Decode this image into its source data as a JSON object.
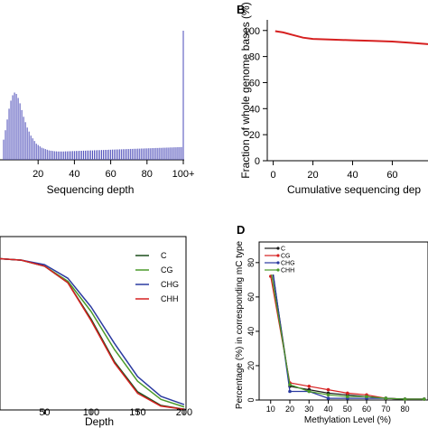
{
  "chart_data": [
    {
      "id": "A",
      "type": "bar",
      "panel_label": "",
      "xlabel": "Sequencing depth",
      "ylabel": "",
      "x_ticks": [
        "20",
        "40",
        "60",
        "80",
        "100+"
      ],
      "x_tick_values": [
        20,
        40,
        60,
        80,
        100
      ],
      "xlim": [
        0,
        100
      ],
      "ylim": [
        0,
        1.0
      ],
      "bar_color": "#4a4ab8",
      "grid": false,
      "depth": [
        1,
        2,
        3,
        4,
        5,
        6,
        7,
        8,
        9,
        10,
        11,
        12,
        13,
        14,
        15,
        16,
        17,
        18,
        19,
        20,
        21,
        22,
        23,
        24,
        25,
        26,
        27,
        28,
        29,
        30,
        31,
        32,
        33,
        34,
        35,
        36,
        37,
        38,
        39,
        40,
        41,
        42,
        43,
        44,
        45,
        46,
        47,
        48,
        49,
        50,
        51,
        52,
        53,
        54,
        55,
        56,
        57,
        58,
        59,
        60,
        61,
        62,
        63,
        64,
        65,
        66,
        67,
        68,
        69,
        70,
        71,
        72,
        73,
        74,
        75,
        76,
        77,
        78,
        79,
        80,
        81,
        82,
        83,
        84,
        85,
        86,
        87,
        88,
        89,
        90,
        91,
        92,
        93,
        94,
        95,
        96,
        97,
        98,
        99,
        100
      ],
      "fraction": [
        0.15,
        0.22,
        0.3,
        0.38,
        0.44,
        0.48,
        0.5,
        0.49,
        0.46,
        0.42,
        0.37,
        0.32,
        0.28,
        0.24,
        0.21,
        0.18,
        0.16,
        0.14,
        0.12,
        0.11,
        0.1,
        0.09,
        0.085,
        0.08,
        0.075,
        0.07,
        0.068,
        0.066,
        0.064,
        0.063,
        0.062,
        0.062,
        0.062,
        0.062,
        0.063,
        0.063,
        0.064,
        0.064,
        0.065,
        0.065,
        0.066,
        0.066,
        0.067,
        0.067,
        0.068,
        0.068,
        0.069,
        0.069,
        0.07,
        0.07,
        0.071,
        0.071,
        0.072,
        0.072,
        0.073,
        0.073,
        0.074,
        0.074,
        0.075,
        0.075,
        0.076,
        0.076,
        0.077,
        0.077,
        0.078,
        0.078,
        0.079,
        0.079,
        0.08,
        0.08,
        0.081,
        0.081,
        0.082,
        0.082,
        0.083,
        0.083,
        0.084,
        0.084,
        0.085,
        0.085,
        0.086,
        0.086,
        0.087,
        0.087,
        0.088,
        0.088,
        0.089,
        0.089,
        0.09,
        0.09,
        0.091,
        0.091,
        0.092,
        0.092,
        0.093,
        0.093,
        0.094,
        0.094,
        0.095,
        0.96
      ]
    },
    {
      "id": "B",
      "type": "line",
      "panel_label": "B",
      "xlabel": "Cumulative sequencing dep",
      "ylabel": "Fraction of whole genome bases (%)",
      "x_ticks": [
        "0",
        "20",
        "40",
        "60"
      ],
      "x_tick_values": [
        0,
        20,
        40,
        60
      ],
      "y_ticks": [
        "0",
        "20",
        "40",
        "60",
        "80",
        "100"
      ],
      "y_tick_values": [
        0,
        20,
        40,
        60,
        80,
        100
      ],
      "xlim": [
        -3,
        78
      ],
      "ylim": [
        0,
        104
      ],
      "grid": false,
      "series": [
        {
          "color": "#d62020",
          "x": [
            1,
            5,
            10,
            15,
            20,
            30,
            40,
            50,
            60,
            70,
            78
          ],
          "y": [
            99.5,
            98.5,
            96.5,
            94.5,
            93.5,
            93.0,
            92.5,
            92.0,
            91.5,
            90.5,
            89.5
          ]
        }
      ]
    },
    {
      "id": "C",
      "type": "line",
      "panel_label": "",
      "xlabel": "Depth",
      "ylabel": "",
      "x_ticks": [
        "50",
        "100",
        "150",
        "200"
      ],
      "x_tick_values": [
        50,
        100,
        150,
        200
      ],
      "xlim": [
        2,
        202
      ],
      "ylim": [
        0,
        1.05
      ],
      "grid": false,
      "legend_position": "top-right",
      "series": [
        {
          "name": "C",
          "color": "#1a4d1a",
          "x": [
            0,
            25,
            50,
            75,
            100,
            125,
            150,
            175,
            200
          ],
          "y": [
            1.0,
            0.99,
            0.95,
            0.84,
            0.6,
            0.32,
            0.12,
            0.03,
            0.005
          ]
        },
        {
          "name": "CG",
          "color": "#4a9a2a",
          "x": [
            0,
            25,
            50,
            75,
            100,
            125,
            150,
            175,
            200
          ],
          "y": [
            1.0,
            0.99,
            0.95,
            0.85,
            0.65,
            0.4,
            0.19,
            0.07,
            0.02
          ]
        },
        {
          "name": "CHG",
          "color": "#2a3aa0",
          "x": [
            0,
            25,
            50,
            75,
            100,
            125,
            150,
            175,
            200
          ],
          "y": [
            1.0,
            0.99,
            0.96,
            0.87,
            0.68,
            0.44,
            0.22,
            0.09,
            0.035
          ]
        },
        {
          "name": "CHH",
          "color": "#d62020",
          "x": [
            0,
            25,
            50,
            75,
            100,
            125,
            150,
            175,
            200
          ],
          "y": [
            1.0,
            0.99,
            0.95,
            0.84,
            0.59,
            0.31,
            0.11,
            0.025,
            0.004
          ]
        }
      ]
    },
    {
      "id": "D",
      "type": "line",
      "panel_label": "D",
      "xlabel": "Methylation Level (%)",
      "ylabel": "Percentage (%) in corresponding mC type",
      "x_ticks": [
        "10",
        "20",
        "30",
        "40",
        "50",
        "60",
        "70",
        "80"
      ],
      "x_tick_values": [
        10,
        20,
        30,
        40,
        50,
        60,
        70,
        80
      ],
      "y_ticks": [
        "0",
        "20",
        "40",
        "60",
        "80"
      ],
      "y_tick_values": [
        0,
        20,
        40,
        60,
        80
      ],
      "xlim": [
        4,
        92
      ],
      "ylim": [
        0,
        92
      ],
      "grid": false,
      "legend_position": "top-left",
      "series": [
        {
          "name": "C",
          "color": "#1a1a1a",
          "x": [
            10,
            20,
            30,
            40,
            50,
            60,
            70,
            80,
            90
          ],
          "y": [
            82,
            8,
            6,
            4,
            3,
            2,
            1,
            0.5,
            0.5
          ]
        },
        {
          "name": "CG",
          "color": "#d62020",
          "x": [
            10,
            20,
            30,
            40,
            50,
            60,
            70,
            80,
            90
          ],
          "y": [
            72,
            10,
            8,
            6,
            4,
            3,
            1,
            0.5,
            0.5
          ]
        },
        {
          "name": "CHG",
          "color": "#2a3aa0",
          "x": [
            10,
            20,
            30,
            40,
            50,
            60,
            70,
            80,
            90
          ],
          "y": [
            84,
            5,
            5,
            1,
            1,
            1,
            1,
            0.5,
            0.5
          ]
        },
        {
          "name": "CHH",
          "color": "#4a9a2a",
          "x": [
            10,
            20,
            30,
            40,
            50,
            60,
            70,
            80,
            90
          ],
          "y": [
            76,
            9,
            5,
            3,
            2,
            2,
            1,
            0.5,
            0.5
          ]
        }
      ]
    }
  ]
}
